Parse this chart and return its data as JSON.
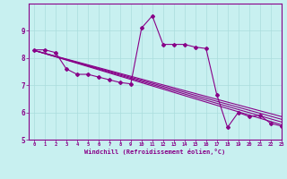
{
  "xlabel": "Windchill (Refroidissement éolien,°C)",
  "background_color": "#c8f0f0",
  "line_color": "#880088",
  "x_hours": [
    0,
    1,
    2,
    3,
    4,
    5,
    6,
    7,
    8,
    9,
    10,
    11,
    12,
    13,
    14,
    15,
    16,
    17,
    18,
    19,
    20,
    21,
    22,
    23
  ],
  "series1": [
    8.3,
    8.3,
    8.2,
    7.6,
    7.4,
    7.4,
    7.3,
    7.2,
    7.1,
    7.05,
    9.1,
    9.55,
    8.5,
    8.5,
    8.5,
    8.4,
    8.35,
    6.65,
    5.45,
    6.0,
    5.85,
    5.9,
    5.6,
    5.5
  ],
  "ylim": [
    5,
    10
  ],
  "xlim": [
    -0.5,
    23
  ],
  "yticks": [
    5,
    6,
    7,
    8,
    9
  ],
  "xticks": [
    0,
    1,
    2,
    3,
    4,
    5,
    6,
    7,
    8,
    9,
    10,
    11,
    12,
    13,
    14,
    15,
    16,
    17,
    18,
    19,
    20,
    21,
    22,
    23
  ],
  "grid_color": "#aadddd",
  "marker": "D",
  "marker_size": 2.0,
  "line_width": 0.8,
  "regression_lines": [
    {
      "x": [
        0,
        23
      ],
      "y": [
        8.28,
        5.55
      ]
    },
    {
      "x": [
        0,
        23
      ],
      "y": [
        8.28,
        5.65
      ]
    },
    {
      "x": [
        0,
        23
      ],
      "y": [
        8.28,
        5.75
      ]
    },
    {
      "x": [
        0,
        23
      ],
      "y": [
        8.28,
        5.85
      ]
    }
  ]
}
